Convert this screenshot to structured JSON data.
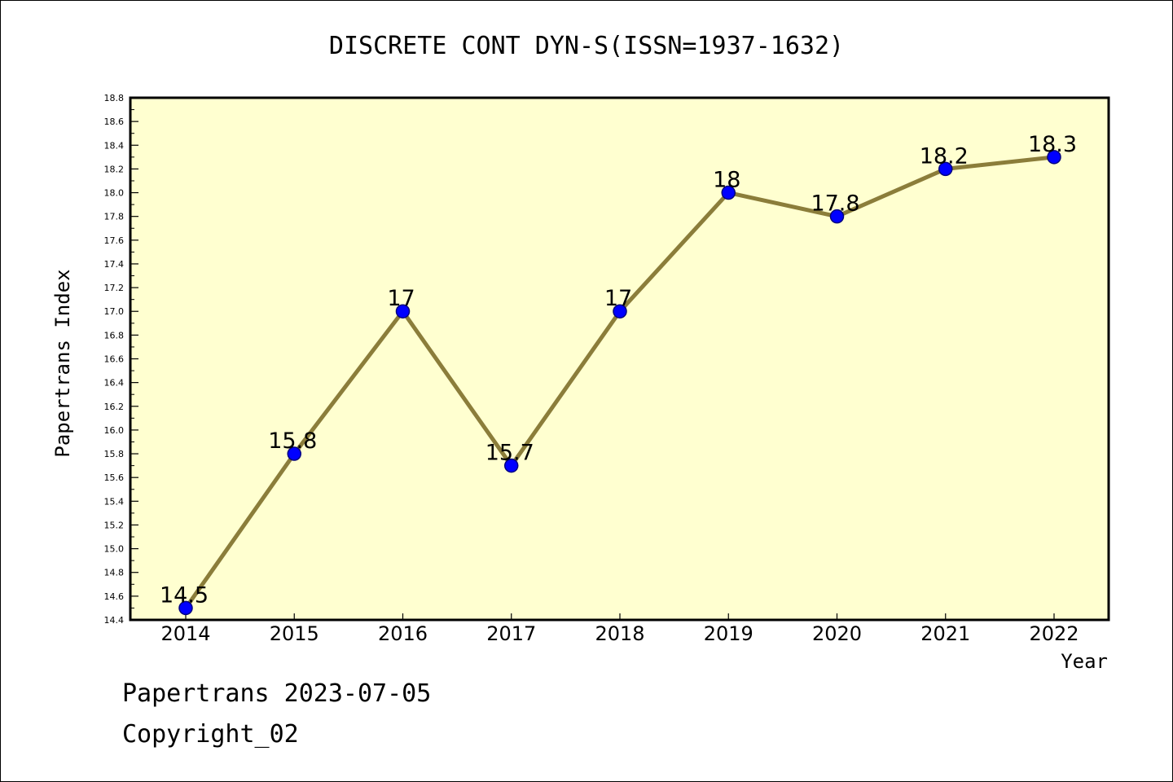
{
  "chart_data": {
    "type": "line",
    "title": "DISCRETE CONT DYN-S(ISSN=1937-1632)",
    "xlabel": "Year",
    "ylabel": "Papertrans Index",
    "ylim": [
      14.4,
      18.8
    ],
    "y_ticks": [
      "14.4",
      "14.6",
      "14.8",
      "15.0",
      "15.2",
      "15.4",
      "15.6",
      "15.8",
      "16.0",
      "16.2",
      "16.4",
      "16.6",
      "16.8",
      "17.0",
      "17.2",
      "17.4",
      "17.6",
      "17.8",
      "18.0",
      "18.2",
      "18.4",
      "18.6",
      "18.8"
    ],
    "categories": [
      "2014",
      "2015",
      "2016",
      "2017",
      "2018",
      "2019",
      "2020",
      "2021",
      "2022"
    ],
    "series": [
      {
        "values": [
          14.5,
          15.8,
          17.0,
          15.7,
          17.0,
          18.0,
          17.8,
          18.2,
          18.3
        ],
        "labels": [
          "14.5",
          "15.8",
          "17",
          "15.7",
          "17",
          "18",
          "17.8",
          "18.2",
          "18.3"
        ]
      }
    ],
    "grid": false,
    "colors": {
      "plot_background": "#ffffd0",
      "line": "#8b7d3a",
      "marker": "#0000ff",
      "marker_edge": "#000080"
    }
  },
  "footer": {
    "date_text": "Papertrans 2023-07-05",
    "copyright_text": "Copyright_02"
  }
}
